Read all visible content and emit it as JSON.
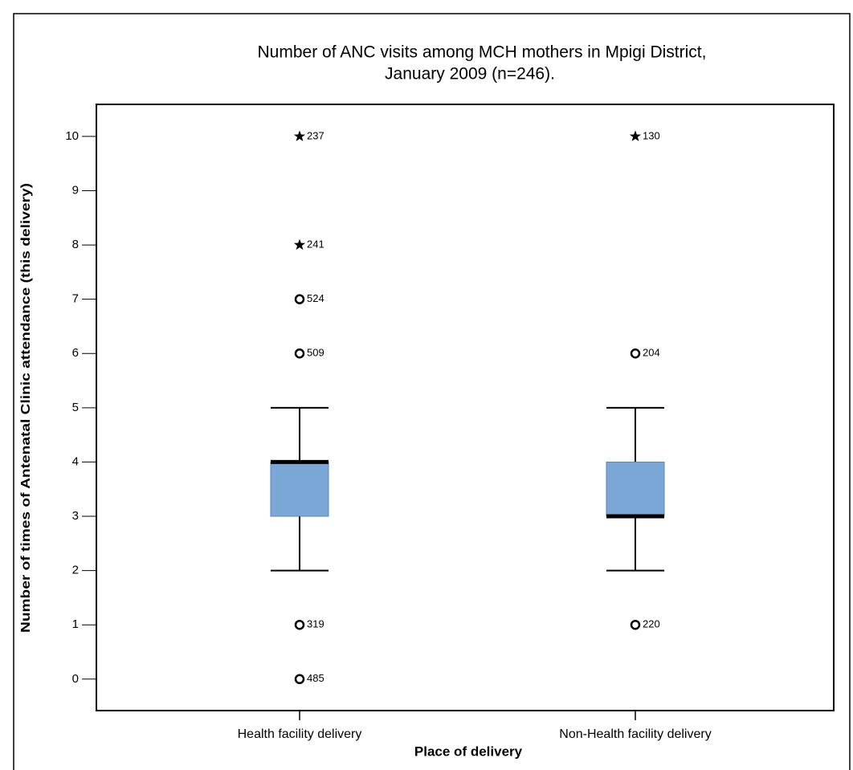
{
  "chart_data": {
    "type": "box",
    "title": [
      "Number of ANC visits among MCH mothers in Mpigi District,",
      "January 2009 (n=246)."
    ],
    "x_label": "Place of delivery",
    "y_label": "Number of times of Antenatal Clinic attendance (this delivery)",
    "categories": [
      "Health facility delivery",
      "Non-Health facility delivery"
    ],
    "color": "#7ba7d7",
    "ylim": [
      -0.58,
      10.59
    ],
    "yticks": [
      0,
      1,
      2,
      3,
      4,
      5,
      6,
      7,
      8,
      9,
      10
    ],
    "boxes": [
      {
        "whisker_low": 2,
        "q1": 3,
        "median": 4,
        "q3": 4,
        "whisker_high": 5,
        "outliers": [
          {
            "value": 10,
            "label": "237",
            "kind": "extreme"
          },
          {
            "value": 8,
            "label": "241",
            "kind": "extreme"
          },
          {
            "value": 7,
            "label": "524",
            "kind": "outlier"
          },
          {
            "value": 6,
            "label": "509",
            "kind": "outlier"
          },
          {
            "value": 1,
            "label": "319",
            "kind": "outlier"
          },
          {
            "value": 0,
            "label": "485",
            "kind": "outlier"
          }
        ]
      },
      {
        "whisker_low": 2,
        "q1": 3,
        "median": 3,
        "q3": 4,
        "whisker_high": 5,
        "outliers": [
          {
            "value": 10,
            "label": "130",
            "kind": "extreme"
          },
          {
            "value": 6,
            "label": "204",
            "kind": "outlier"
          },
          {
            "value": 1,
            "label": "220",
            "kind": "outlier"
          }
        ]
      }
    ]
  }
}
